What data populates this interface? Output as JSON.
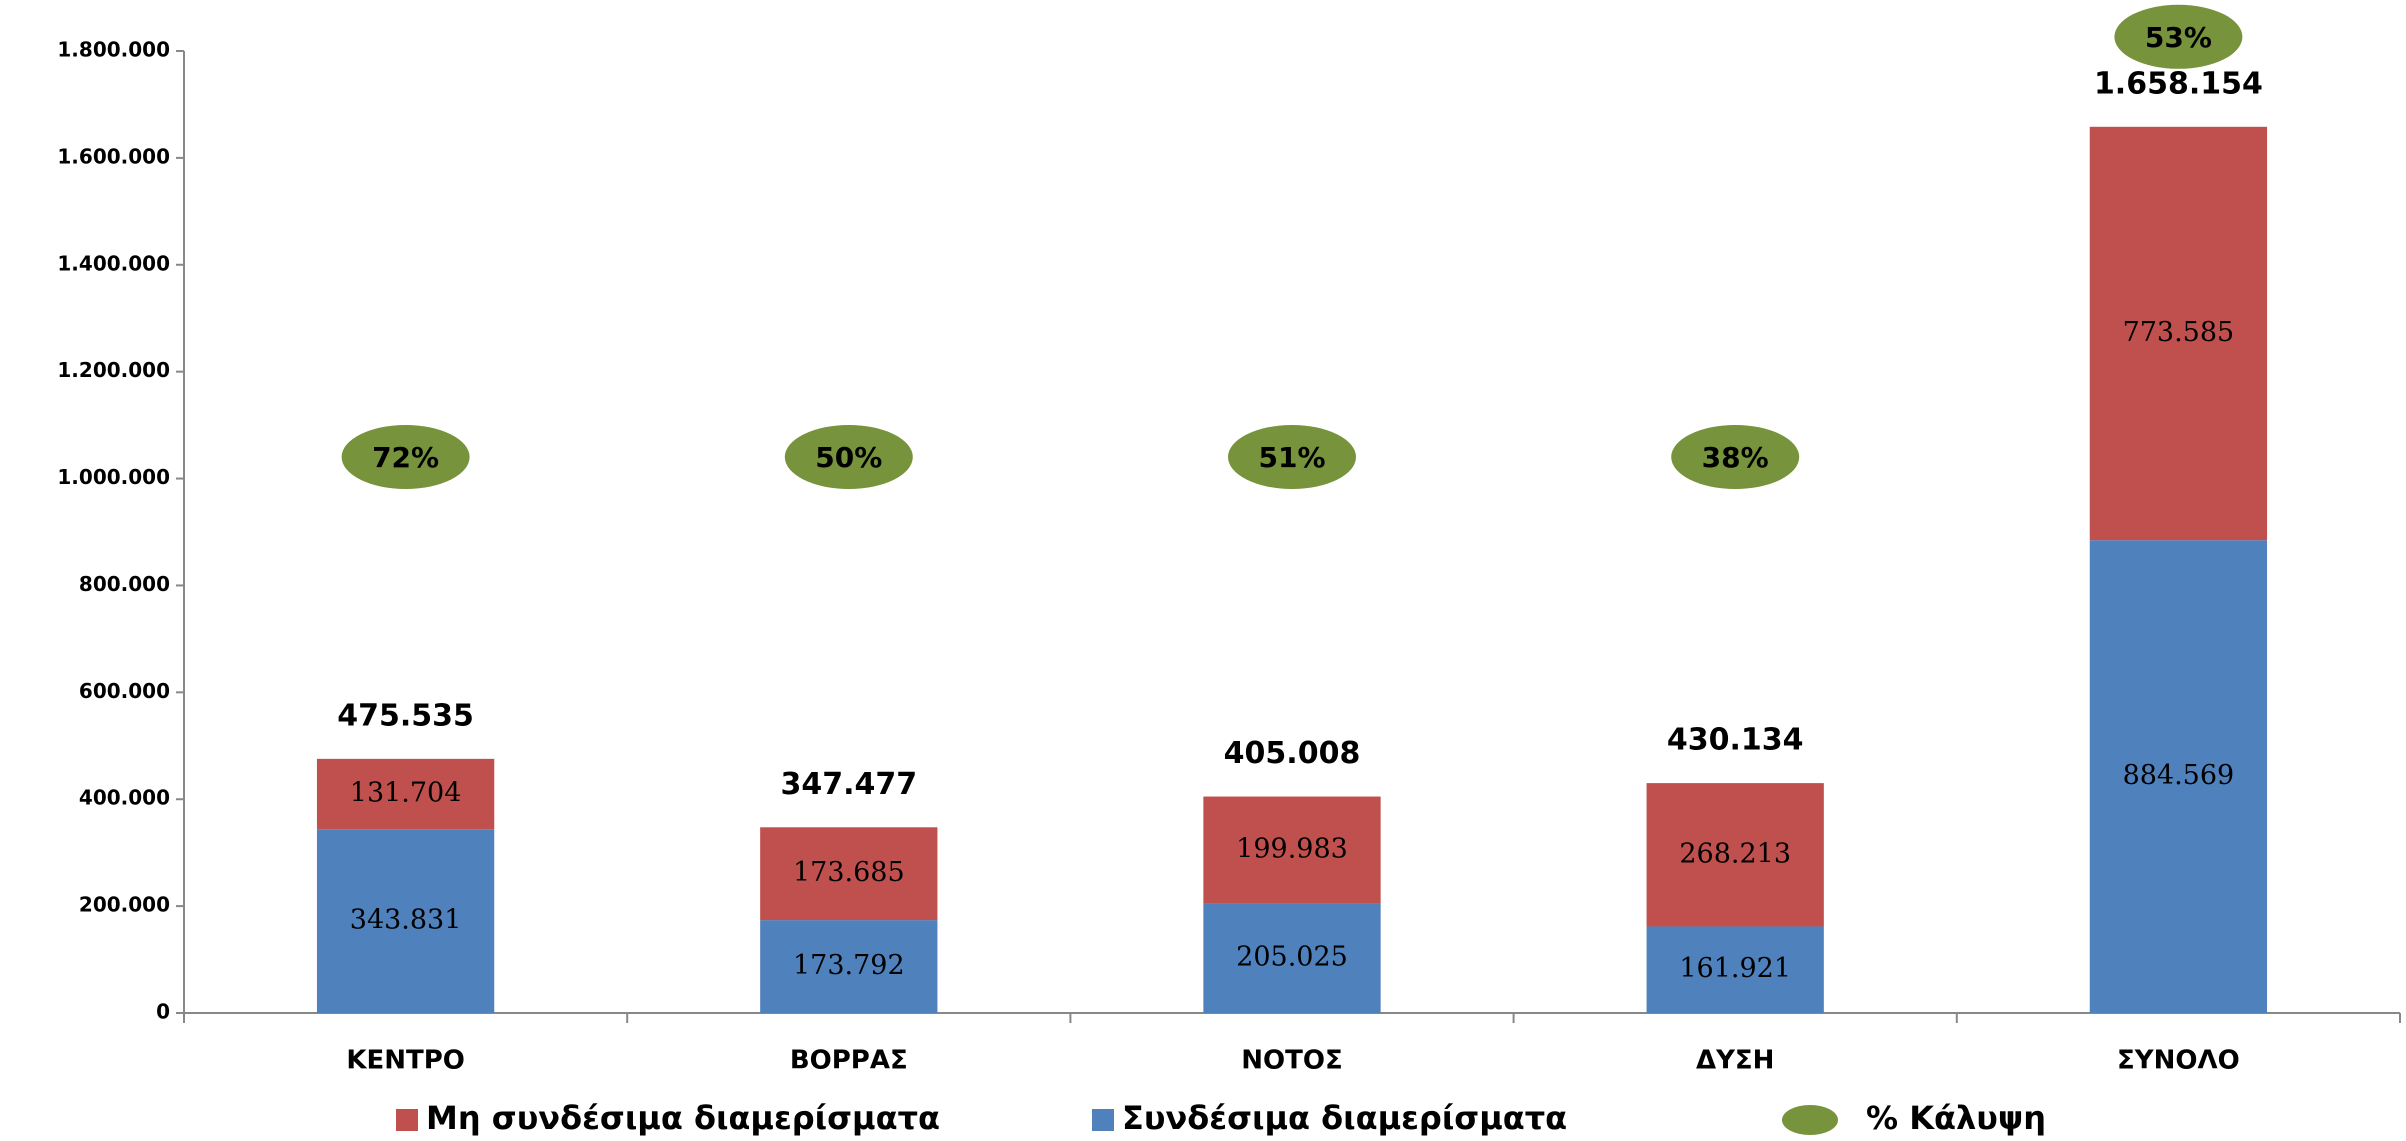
{
  "chart_data": {
    "type": "stacked-bar",
    "categories": [
      "ΚΕΝΤΡΟ",
      "ΒΟΡΡΑΣ",
      "ΝΟΤΟΣ",
      "ΔΥΣΗ",
      "ΣΥΝΟΛΟ"
    ],
    "series": [
      {
        "name": "Μη συνδέσιμα διαμερίσματα",
        "color": "#c0504d",
        "values": [
          131704,
          173685,
          199983,
          268213,
          773585
        ],
        "value_labels": [
          "131.704",
          "173.685",
          "199.983",
          "268.213",
          "773.585"
        ]
      },
      {
        "name": "Συνδέσιμα διαμερίσματα",
        "color": "#4f81bd",
        "values": [
          343831,
          173792,
          205025,
          161921,
          884569
        ],
        "value_labels": [
          "343.831",
          "173.792",
          "205.025",
          "161.921",
          "884.569"
        ]
      }
    ],
    "totals": {
      "values": [
        475535,
        347477,
        405008,
        430134,
        1658154
      ],
      "value_labels": [
        "475.535",
        "347.477",
        "405.008",
        "430.134",
        "1.658.154"
      ]
    },
    "coverage": {
      "name": "% Κάλυψη",
      "color": "#77933c",
      "values": [
        72,
        50,
        51,
        38,
        53
      ],
      "value_labels": [
        "72%",
        "50%",
        "51%",
        "38%",
        "53%"
      ]
    },
    "ylim": [
      0,
      1800000
    ],
    "yticks": [
      0,
      {
        "value": 200000,
        "label": "200.000"
      },
      {
        "value": 400000,
        "label": "400.000"
      },
      {
        "value": 600000,
        "label": "600.000"
      },
      {
        "value": 800000,
        "label": "800.000"
      },
      {
        "value": 1000000,
        "label": "1.000.000"
      },
      {
        "value": 1200000,
        "label": "1.200.000"
      },
      {
        "value": 1400000,
        "label": "1.400.000"
      },
      {
        "value": 1600000,
        "label": "1.600.000"
      },
      {
        "value": 1800000,
        "label": "1.800.000"
      }
    ]
  }
}
